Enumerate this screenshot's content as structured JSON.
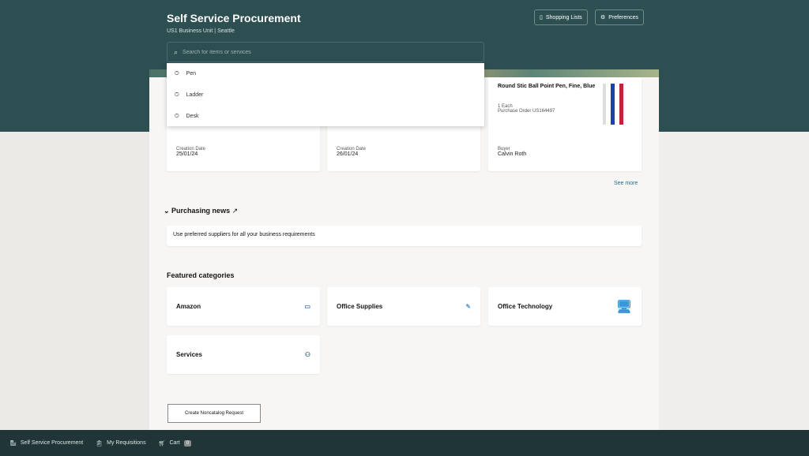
{
  "header": {
    "title": "Self Service Procurement",
    "subtitle": "US1 Business Unit | Seattle",
    "shopping_lists": "Shopping Lists",
    "preferences": "Preferences"
  },
  "search": {
    "placeholder": "Search for items or services",
    "recent": [
      "Pen",
      "Ladder",
      "Desk"
    ]
  },
  "recent_cards": [
    {
      "label": "Creation Date",
      "value": "25/01/24"
    },
    {
      "label": "Creation Date",
      "value": "26/01/24"
    },
    {
      "title": "Round Stic Ball Point Pen, Fine, Blue",
      "qty": "1 Each",
      "po": "Purchase Order US164497",
      "label": "Buyer",
      "value": "Calvin Roth"
    }
  ],
  "see_more": "See more",
  "news": {
    "title": "Purchasing news",
    "text": "Use preferred suppliers for all your business requirements"
  },
  "featured": {
    "title": "Featured categories",
    "items": [
      "Amazon",
      "Office Supplies",
      "Office Technology",
      "Services"
    ]
  },
  "noncatalog": "Create Noncatalog Request",
  "footer": {
    "items": [
      "Self Service Procurement",
      "My Requisitions",
      "Cart"
    ],
    "cart_count": "0"
  },
  "colors": {
    "header": "#2d4f52",
    "footer": "#1f3537",
    "link": "#1f6f8b"
  }
}
